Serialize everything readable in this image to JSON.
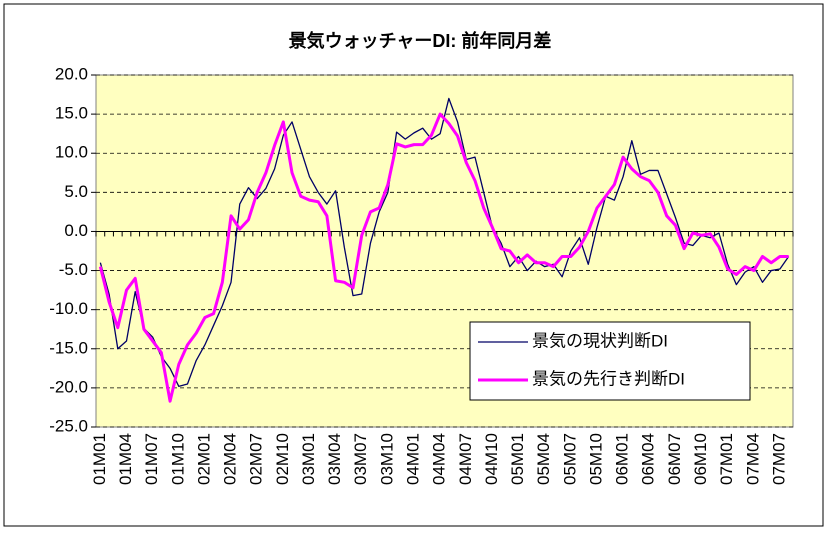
{
  "chart_data": {
    "type": "line",
    "title": "景気ウォッチャーDI: 前年同月差",
    "categories": [
      "01M01",
      null,
      null,
      "01M04",
      null,
      null,
      "01M07",
      null,
      null,
      "01M10",
      null,
      null,
      "02M01",
      null,
      null,
      "02M04",
      null,
      null,
      "02M07",
      null,
      null,
      "02M10",
      null,
      null,
      "03M01",
      null,
      null,
      "03M04",
      null,
      null,
      "03M07",
      null,
      null,
      "03M10",
      null,
      null,
      "04M01",
      null,
      null,
      "04M04",
      null,
      null,
      "04M07",
      null,
      null,
      "04M10",
      null,
      null,
      "05M01",
      null,
      null,
      "05M04",
      null,
      null,
      "05M07",
      null,
      null,
      "05M10",
      null,
      null,
      "06M01",
      null,
      null,
      "06M04",
      null,
      null,
      "06M07",
      null,
      null,
      "06M10",
      null,
      null,
      "07M01",
      null,
      null,
      "07M04",
      null,
      null,
      "07M07",
      null
    ],
    "series": [
      {
        "name": "景気の現状判断DI",
        "color": "#000066",
        "values": [
          -4,
          -8,
          -15,
          -14,
          -7.7,
          -12.4,
          -13.5,
          -16,
          -17.5,
          -19.8,
          -19.5,
          -16.5,
          -14.5,
          -12,
          -9.5,
          -6.5,
          3.5,
          5.6,
          4.2,
          5.5,
          8,
          12.3,
          14,
          10.5,
          7,
          5,
          3.5,
          5.2,
          -2,
          -8.2,
          -8,
          -1.5,
          2.5,
          5,
          12.7,
          11.8,
          12.6,
          13.2,
          11.8,
          12.5,
          17,
          14,
          9.2,
          9.5,
          5,
          0.5,
          -1.5,
          -4.5,
          -3.2,
          -5,
          -3.8,
          -4.5,
          -4.2,
          -5.8,
          -2.5,
          -0.8,
          -4.2,
          0.5,
          4.5,
          4,
          7,
          11.6,
          7.3,
          7.8,
          7.8,
          4.8,
          1.8,
          -1.5,
          -1.8,
          -0.5,
          -0.8,
          -0.2,
          -4.2,
          -6.8,
          -5.2,
          -4.5,
          -6.5,
          -5,
          -4.8,
          -3.2
        ]
      },
      {
        "name": "景気の先行き判断DI",
        "color": "#ff00ff",
        "values": [
          -4.5,
          -9,
          -12.3,
          -7.5,
          -6,
          -12.5,
          -14,
          -15.5,
          -21.7,
          -17,
          -14.5,
          -13,
          -11,
          -10.5,
          -6.5,
          2,
          0.3,
          1.5,
          5,
          7.5,
          11,
          14,
          7.5,
          4.5,
          4,
          3.8,
          2,
          -6.3,
          -6.5,
          -7.2,
          -0.5,
          2.5,
          3,
          6,
          11.2,
          10.8,
          11.1,
          11.1,
          12.3,
          15,
          13.8,
          12.2,
          8.8,
          6.5,
          3,
          0.5,
          -2.2,
          -2.5,
          -4,
          -3,
          -4,
          -4,
          -4.5,
          -3.2,
          -3.2,
          -2,
          0,
          3,
          4.5,
          6,
          9.5,
          8,
          7,
          6.5,
          5,
          2,
          0.8,
          -2.2,
          -0.2,
          -0.5,
          -0.3,
          -2,
          -4.8,
          -5.5,
          -4.5,
          -5,
          -3.2,
          -4,
          -3.2,
          -3.2
        ]
      }
    ],
    "ylim": [
      -25,
      20
    ],
    "yticks": [
      {
        "value": -25,
        "label": "-25.0"
      },
      {
        "value": -20,
        "label": "-20.0"
      },
      {
        "value": -15,
        "label": "-15.0"
      },
      {
        "value": -10,
        "label": "-10.0"
      },
      {
        "value": -5,
        "label": "-5.0"
      },
      {
        "value": 0,
        "label": "0.0"
      },
      {
        "value": 5,
        "label": "5.0"
      },
      {
        "value": 10,
        "label": "10.0"
      },
      {
        "value": 15,
        "label": "15.0"
      },
      {
        "value": 20,
        "label": "20.0"
      }
    ],
    "grid": true,
    "legend": "lower right"
  }
}
